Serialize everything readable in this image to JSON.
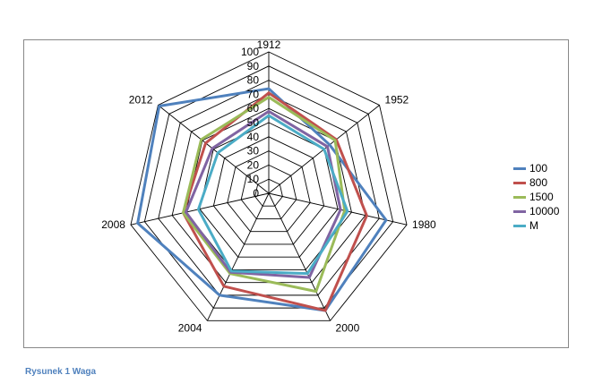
{
  "caption": "Rysunek 1  Waga",
  "chart_data": {
    "type": "radar",
    "categories": [
      "1912",
      "1952",
      "1980",
      "2000",
      "2004",
      "2008",
      "2012"
    ],
    "rlim": [
      0,
      100
    ],
    "ticks": [
      "0",
      "10",
      "20",
      "30",
      "40",
      "50",
      "60",
      "70",
      "80",
      "90",
      "100"
    ],
    "legend_position": "right",
    "grid": true,
    "series": [
      {
        "name": "100",
        "color": "#4f81bd",
        "values": [
          74,
          55,
          85,
          92,
          80,
          95,
          99
        ]
      },
      {
        "name": "800",
        "color": "#c0504d",
        "values": [
          71,
          61,
          71,
          92,
          73,
          62,
          57
        ]
      },
      {
        "name": "1500",
        "color": "#9bbb59",
        "values": [
          68,
          60,
          55,
          77,
          63,
          62,
          61
        ]
      },
      {
        "name": "10000",
        "color": "#8064a2",
        "values": [
          58,
          53,
          52,
          66,
          62,
          60,
          51
        ]
      },
      {
        "name": "M",
        "color": "#4bacc6",
        "values": [
          55,
          50,
          57,
          63,
          61,
          51,
          46
        ]
      }
    ]
  }
}
